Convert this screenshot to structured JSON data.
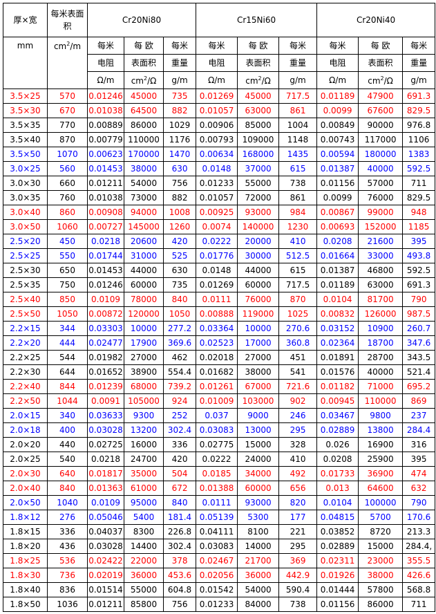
{
  "header": {
    "col1_title": "厚×宽",
    "col2_title": "每米表面积",
    "alloys": [
      "Cr20Ni80",
      "Cr15Ni60",
      "Cr20Ni40"
    ],
    "unit_mm": "mm",
    "unit_area_prefix": "cm",
    "unit_area_exp": "2",
    "unit_area_suffix": "/m",
    "sub_labels_1": [
      "每米",
      "每 欧",
      "每米"
    ],
    "sub_labels_2": [
      "电阻",
      "表面积",
      "重量"
    ],
    "unit_resistance": "Ω/m",
    "unit_surface_prefix": "cm",
    "unit_surface_exp": "2",
    "unit_surface_suffix": "/Ω",
    "unit_weight": "g/m"
  },
  "colors": {
    "red": "#ff0000",
    "blue": "#0000ff",
    "black": "#000000"
  },
  "rows": [
    {
      "color": "red",
      "cells": [
        "3.5×25",
        "570",
        "0.01246",
        "45000",
        "735",
        "0.01269",
        "45000",
        "717.5",
        "0.01189",
        "47900",
        "691.3"
      ]
    },
    {
      "color": "red",
      "cells": [
        "3.5×30",
        "670",
        "0.01038",
        "64500",
        "882",
        "0.01057",
        "63000",
        "861",
        "0.0099",
        "67600",
        "829.5"
      ]
    },
    {
      "color": "black",
      "cells": [
        "3.5×35",
        "770",
        "0.00889",
        "86000",
        "1029",
        "0.00906",
        "85000",
        "1004",
        "0.00849",
        "90000",
        "976.8"
      ]
    },
    {
      "color": "black",
      "cells": [
        "3.5×40",
        "870",
        "0.00779",
        "110000",
        "1176",
        "0.00793",
        "109000",
        "1148",
        "0.00743",
        "117000",
        "1106"
      ]
    },
    {
      "color": "blue",
      "cells": [
        "3.5×50",
        "1070",
        "0.00623",
        "170000",
        "1470",
        "0.00634",
        "168000",
        "1435",
        "0.00594",
        "180000",
        "1383"
      ]
    },
    {
      "color": "blue",
      "cells": [
        "3.0×25",
        "560",
        "0.01453",
        "38000",
        "630",
        "0.0148",
        "37000",
        "615",
        "0.01387",
        "40000",
        "592.5"
      ]
    },
    {
      "color": "black",
      "cells": [
        "3.0×30",
        "660",
        "0.01211",
        "54000",
        "756",
        "0.01233",
        "55000",
        "738",
        "0.01156",
        "57000",
        "711"
      ]
    },
    {
      "color": "black",
      "cells": [
        "3.0×35",
        "760",
        "0.01038",
        "73000",
        "882",
        "0.01057",
        "72000",
        "861",
        "0.0099",
        "76000",
        "829.5"
      ]
    },
    {
      "color": "red",
      "cells": [
        "3.0×40",
        "860",
        "0.00908",
        "94000",
        "1008",
        "0.00925",
        "93000",
        "984",
        "0.00867",
        "99000",
        "948"
      ]
    },
    {
      "color": "red",
      "cells": [
        "3.0×50",
        "1060",
        "0.00727",
        "145000",
        "1260",
        "0.0074",
        "140000",
        "1230",
        "0.00693",
        "152000",
        "1185"
      ]
    },
    {
      "color": "blue",
      "cells": [
        "2.5×20",
        "450",
        "0.0218",
        "20600",
        "420",
        "0.0222",
        "20000",
        "410",
        "0.0208",
        "21600",
        "395"
      ]
    },
    {
      "color": "blue",
      "cells": [
        "2.5×25",
        "550",
        "0.01744",
        "31000",
        "525",
        "0.01776",
        "30000",
        "512.5",
        "0.01664",
        "33000",
        "493.8"
      ]
    },
    {
      "color": "black",
      "cells": [
        "2.5×30",
        "650",
        "0.01453",
        "44000",
        "630",
        "0.0148",
        "44000",
        "615",
        "0.01387",
        "46800",
        "592.5"
      ]
    },
    {
      "color": "black",
      "cells": [
        "2.5×35",
        "750",
        "0.01246",
        "60000",
        "735",
        "0.01269",
        "60000",
        "717.5",
        "0.01189",
        "63000",
        "691.3"
      ]
    },
    {
      "color": "red",
      "cells": [
        "2.5×40",
        "850",
        "0.0109",
        "78000",
        "840",
        "0.0111",
        "76000",
        "870",
        "0.0104",
        "81700",
        "790"
      ]
    },
    {
      "color": "red",
      "cells": [
        "2.5×50",
        "1050",
        "0.00872",
        "120000",
        "1050",
        "0.00888",
        "119000",
        "1025",
        "0.00832",
        "126000",
        "987.5"
      ]
    },
    {
      "color": "blue",
      "cells": [
        "2.2×15",
        "344",
        "0.03303",
        "10000",
        "277.2",
        "0.03364",
        "10000",
        "270.6",
        "0.03152",
        "10900",
        "260.7"
      ]
    },
    {
      "color": "blue",
      "cells": [
        "2.2×20",
        "444",
        "0.02477",
        "17900",
        "369.6",
        "0.02523",
        "17000",
        "360.8",
        "0.02364",
        "18700",
        "347.6"
      ]
    },
    {
      "color": "black",
      "cells": [
        "2.2×25",
        "544",
        "0.01982",
        "27000",
        "462",
        "0.02018",
        "27000",
        "451",
        "0.01891",
        "28700",
        "343.5"
      ]
    },
    {
      "color": "black",
      "cells": [
        "2.2×30",
        "644",
        "0.01652",
        "38900",
        "554.4",
        "0.01682",
        "38000",
        "541",
        "0.01576",
        "40000",
        "521.4"
      ]
    },
    {
      "color": "red",
      "cells": [
        "2.2×40",
        "844",
        "0.01239",
        "68000",
        "739.2",
        "0.01261",
        "67000",
        "721.6",
        "0.01182",
        "71000",
        "695.2"
      ]
    },
    {
      "color": "red",
      "cells": [
        "2.2×50",
        "1044",
        "0.0091",
        "105000",
        "924",
        "0.01009",
        "103000",
        "902",
        "0.00945",
        "110000",
        "869"
      ]
    },
    {
      "color": "blue",
      "cells": [
        "2.0×15",
        "340",
        "0.03633",
        "9300",
        "252",
        "0.037",
        "9000",
        "246",
        "0.03467",
        "9800",
        "237"
      ]
    },
    {
      "color": "blue",
      "cells": [
        "2.0×18",
        "400",
        "0.03028",
        "13200",
        "302.4",
        "0.03083",
        "13000",
        "295",
        "0.02889",
        "13800",
        "284.4"
      ]
    },
    {
      "color": "black",
      "cells": [
        "2.0×20",
        "440",
        "0.02725",
        "16000",
        "336",
        "0.02775",
        "15000",
        "328",
        "0.026",
        "16900",
        "316"
      ]
    },
    {
      "color": "black",
      "cells": [
        "2.0×25",
        "540",
        "0.0218",
        "24700",
        "420",
        "0.0222",
        "24000",
        "410",
        "0.0208",
        "25900",
        "395"
      ]
    },
    {
      "color": "red",
      "cells": [
        "2.0×30",
        "640",
        "0.01817",
        "35000",
        "504",
        "0.0185",
        "34000",
        "492",
        "0.01733",
        "36900",
        "474"
      ]
    },
    {
      "color": "red",
      "cells": [
        "2.0×40",
        "840",
        "0.01363",
        "61000",
        "672",
        "0.01388",
        "60000",
        "656",
        "0.013",
        "64600",
        "632"
      ]
    },
    {
      "color": "blue",
      "cells": [
        "2.0×50",
        "1040",
        "0.0109",
        "95000",
        "840",
        "0.0111",
        "93000",
        "820",
        "0.0104",
        "100000",
        "790"
      ]
    },
    {
      "color": "blue",
      "cells": [
        "1.8×12",
        "276",
        "0.05046",
        "5400",
        "181.4",
        "0.05139",
        "5300",
        "177",
        "0.04815",
        "5700",
        "170.6"
      ]
    },
    {
      "color": "black",
      "cells": [
        "1.8×15",
        "336",
        "0.04037",
        "8300",
        "226.8",
        "0.04111",
        "8100",
        "221",
        "0.03852",
        "8720",
        "213.3"
      ]
    },
    {
      "color": "black",
      "cells": [
        "1.8×20",
        "436",
        "0.03028",
        "14400",
        "302.4",
        "0.03083",
        "14000",
        "295",
        "0.02889",
        "15000",
        "284.4,"
      ]
    },
    {
      "color": "red",
      "cells": [
        "1.8×25",
        "536",
        "0.02422",
        "22000",
        "378",
        "0.02467",
        "21700",
        "369",
        "0.02311",
        "23000",
        "355.5"
      ]
    },
    {
      "color": "red",
      "cells": [
        "1.8×30",
        "736",
        "0.02019",
        "36000",
        "453.6",
        "0.02056",
        "36000",
        "442.9",
        "0.01926",
        "38000",
        "426.6"
      ]
    },
    {
      "color": "black",
      "cells": [
        "1.8×40",
        "836",
        "0.01514",
        "55000",
        "604.8",
        "0.01542",
        "54000",
        "590.4",
        "0.01444",
        "57800",
        "568.8"
      ]
    },
    {
      "color": "black",
      "cells": [
        "1.8×50",
        "1036",
        "0.01211",
        "85800",
        "756",
        "0.01233",
        "84000",
        "738",
        "0.01156",
        "86000",
        "711"
      ]
    }
  ]
}
